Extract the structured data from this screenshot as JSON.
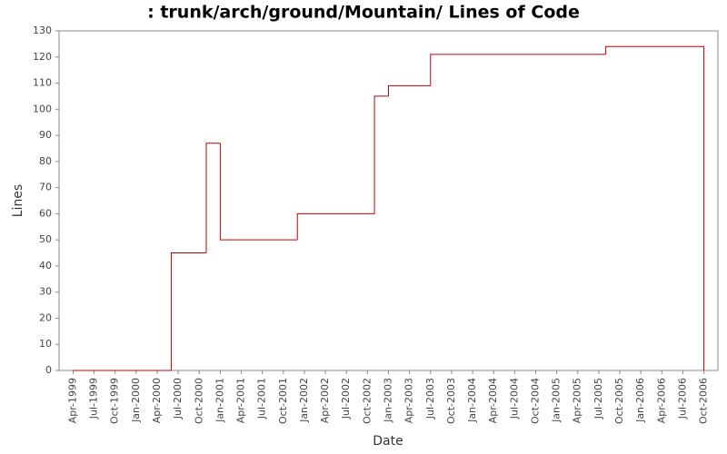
{
  "chart_data": {
    "type": "step",
    "title": ": trunk/arch/ground/Mountain/ Lines of Code",
    "x_label": "Date",
    "y_label": "Lines",
    "series": [
      {
        "name": "Lines",
        "color": "#c00000",
        "x": [
          "1999-04",
          "2000-06",
          "2000-11",
          "2001-01",
          "2001-12",
          "2002-11",
          "2003-01",
          "2003-07",
          "2003-07",
          "2005-08",
          "2006-10"
        ],
        "values": [
          0,
          45,
          87,
          50,
          60,
          105,
          109,
          115,
          121,
          124,
          0
        ]
      }
    ],
    "xlim": [
      "1999-02",
      "2006-12"
    ],
    "xticks": [
      {
        "value": "1999-04",
        "label": "Apr-1999"
      },
      {
        "value": "1999-07",
        "label": "Jul-1999"
      },
      {
        "value": "1999-10",
        "label": "Oct-1999"
      },
      {
        "value": "2000-01",
        "label": "Jan-2000"
      },
      {
        "value": "2000-04",
        "label": "Apr-2000"
      },
      {
        "value": "2000-07",
        "label": "Jul-2000"
      },
      {
        "value": "2000-10",
        "label": "Oct-2000"
      },
      {
        "value": "2001-01",
        "label": "Jan-2001"
      },
      {
        "value": "2001-04",
        "label": "Apr-2001"
      },
      {
        "value": "2001-07",
        "label": "Jul-2001"
      },
      {
        "value": "2001-10",
        "label": "Oct-2001"
      },
      {
        "value": "2002-01",
        "label": "Jan-2002"
      },
      {
        "value": "2002-04",
        "label": "Apr-2002"
      },
      {
        "value": "2002-07",
        "label": "Jul-2002"
      },
      {
        "value": "2002-10",
        "label": "Oct-2002"
      },
      {
        "value": "2003-01",
        "label": "Jan-2003"
      },
      {
        "value": "2003-04",
        "label": "Apr-2003"
      },
      {
        "value": "2003-07",
        "label": "Jul-2003"
      },
      {
        "value": "2003-10",
        "label": "Oct-2003"
      },
      {
        "value": "2004-01",
        "label": "Jan-2004"
      },
      {
        "value": "2004-04",
        "label": "Apr-2004"
      },
      {
        "value": "2004-07",
        "label": "Jul-2004"
      },
      {
        "value": "2004-10",
        "label": "Oct-2004"
      },
      {
        "value": "2005-01",
        "label": "Jan-2005"
      },
      {
        "value": "2005-04",
        "label": "Apr-2005"
      },
      {
        "value": "2005-07",
        "label": "Jul-2005"
      },
      {
        "value": "2005-10",
        "label": "Oct-2005"
      },
      {
        "value": "2006-01",
        "label": "Jan-2006"
      },
      {
        "value": "2006-04",
        "label": "Apr-2006"
      },
      {
        "value": "2006-07",
        "label": "Jul-2006"
      },
      {
        "value": "2006-10",
        "label": "Oct-2006"
      }
    ],
    "ylim": [
      0,
      130
    ],
    "yticks": [
      0,
      10,
      20,
      30,
      40,
      50,
      60,
      70,
      80,
      90,
      100,
      110,
      120,
      130
    ],
    "grid": false
  }
}
